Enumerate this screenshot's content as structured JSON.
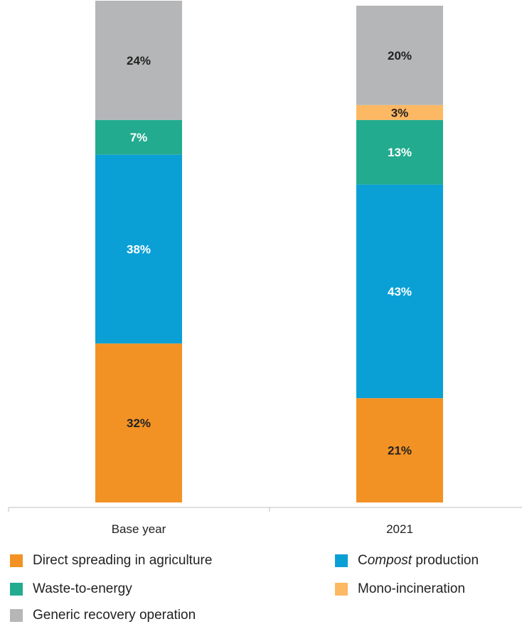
{
  "chart_data": {
    "type": "bar",
    "stacked": true,
    "categories": [
      "Base year",
      "2021"
    ],
    "ylim": [
      0,
      100
    ],
    "series": [
      {
        "name": "Direct spreading in agriculture",
        "color": "#f39224",
        "label_color": "#222222",
        "values": [
          32,
          21
        ]
      },
      {
        "name": "Compost production",
        "color": "#0aa0d6",
        "label_color": "#ffffff",
        "values": [
          38,
          43
        ]
      },
      {
        "name": "Waste-to-energy",
        "color": "#22ab8f",
        "label_color": "#ffffff",
        "values": [
          7,
          13
        ]
      },
      {
        "name": "Mono-incineration",
        "color": "#fdb863",
        "label_color": "#222222",
        "values": [
          0,
          3
        ]
      },
      {
        "name": "Generic recovery operation",
        "color": "#b5b6b7",
        "label_color": "#222222",
        "values": [
          24,
          20
        ]
      }
    ],
    "data_labels": [
      [
        "32%",
        "21%"
      ],
      [
        "38%",
        "43%"
      ],
      [
        "7%",
        "13%"
      ],
      [
        "",
        "3%"
      ],
      [
        "24%",
        "20%"
      ]
    ],
    "legend": {
      "placement": "bottom",
      "items": [
        {
          "pre": "",
          "em": "",
          "post": "Direct spreading in agriculture",
          "color": "#f39224"
        },
        {
          "pre": "C",
          "em": "ompost",
          "post": " production",
          "color": "#0aa0d6"
        },
        {
          "pre": "",
          "em": "",
          "post": "Waste-to-energy",
          "color": "#22ab8f"
        },
        {
          "pre": "",
          "em": "",
          "post": "Mono-incineration",
          "color": "#fdb863"
        },
        {
          "pre": "",
          "em": "",
          "post": "Generic recovery operation",
          "color": "#b5b6b7"
        }
      ]
    }
  }
}
